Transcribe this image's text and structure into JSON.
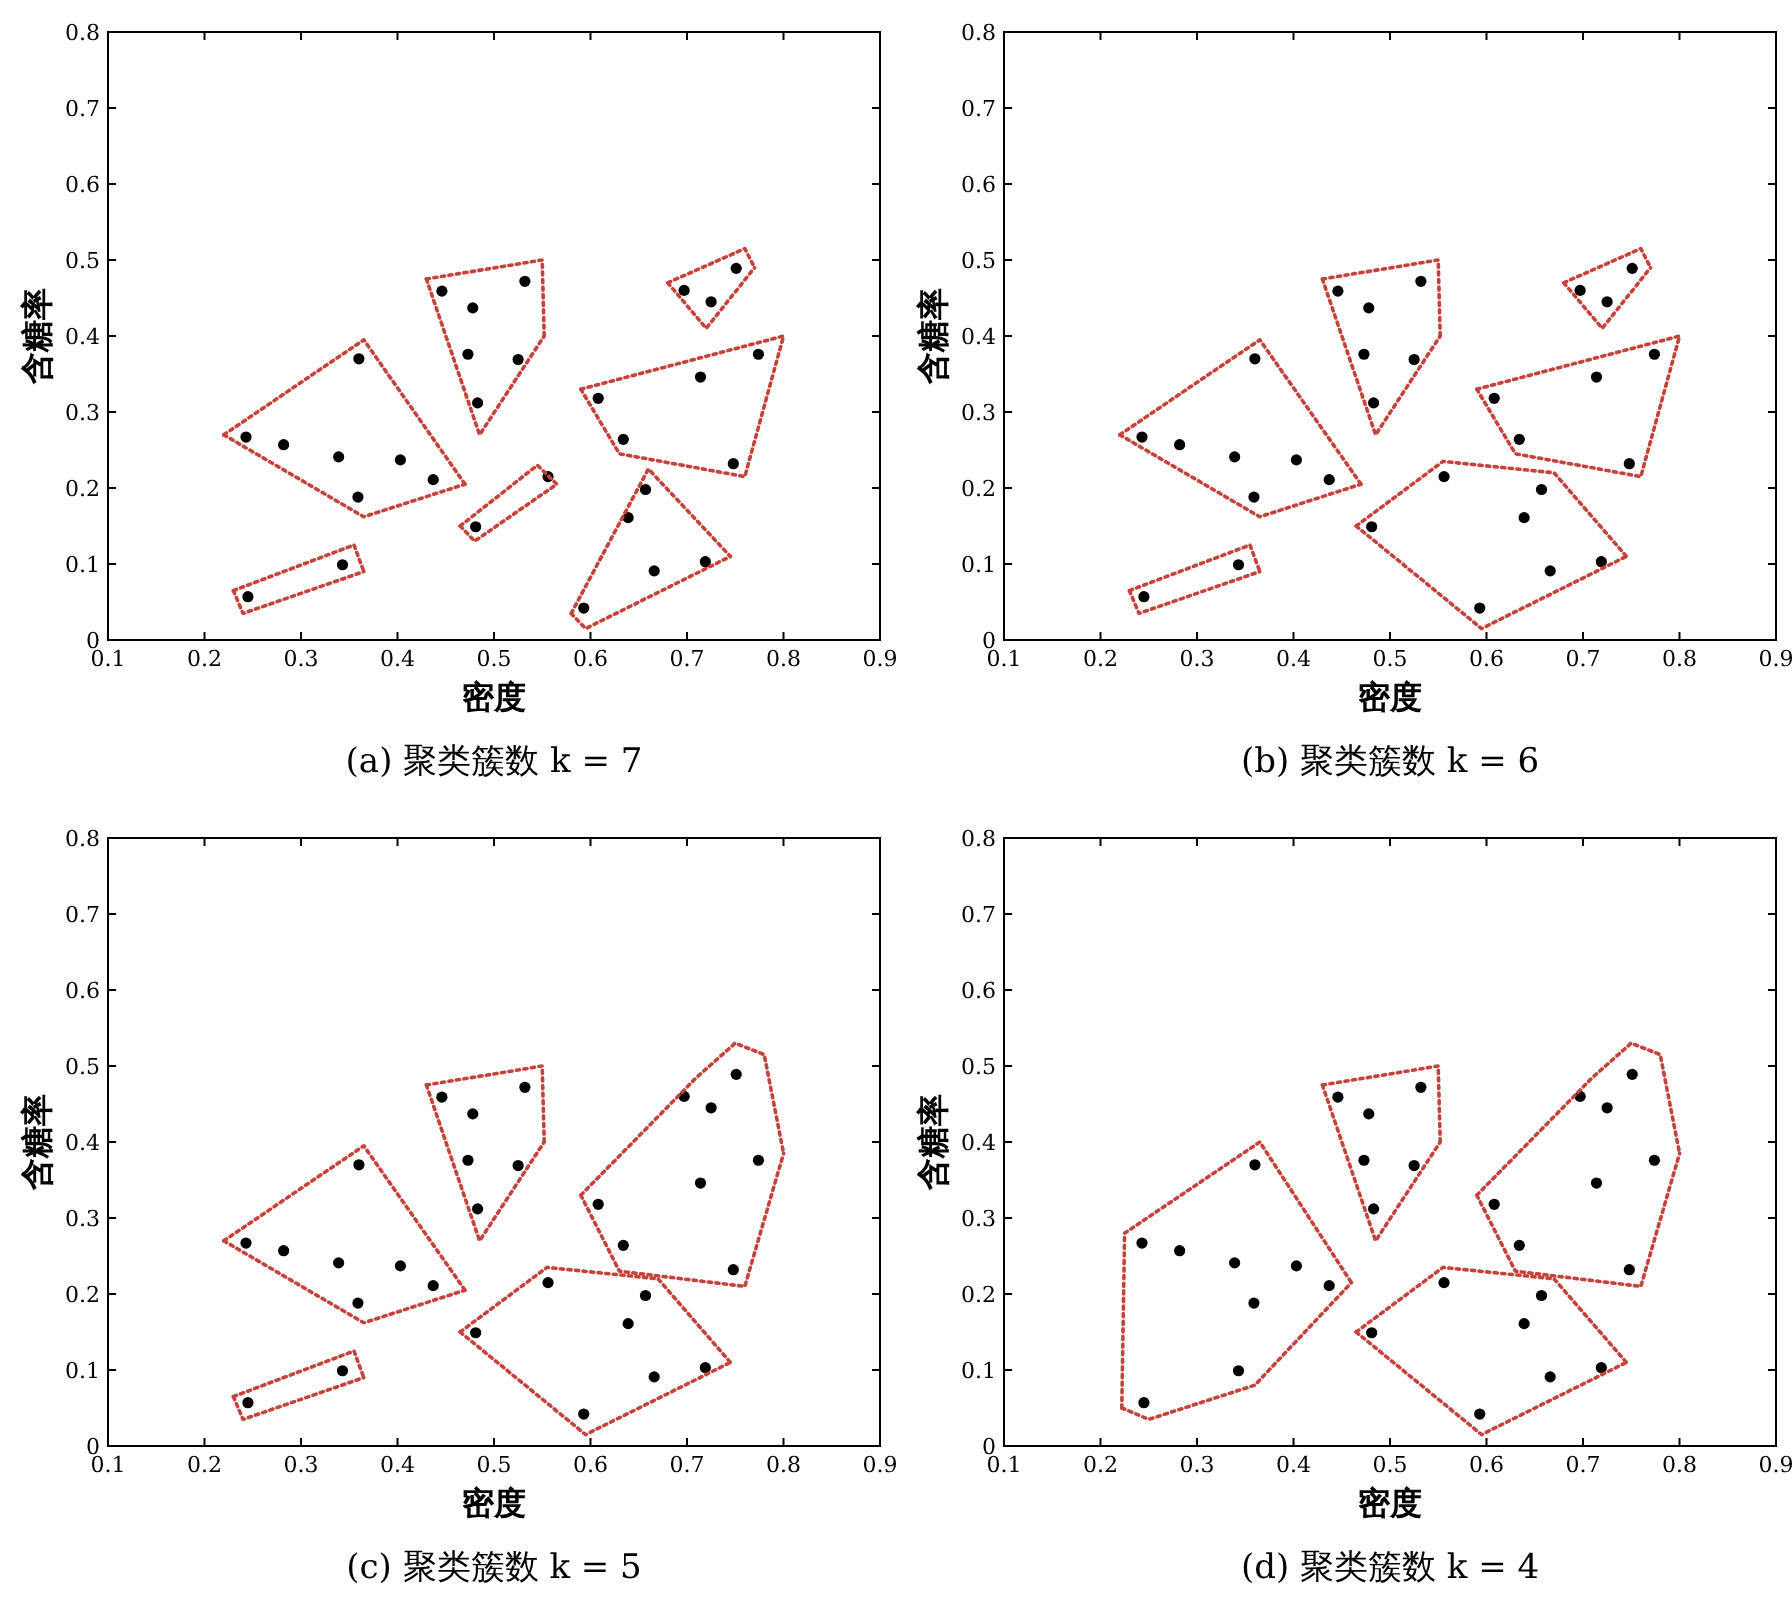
{
  "chart_data": [
    {
      "type": "scatter",
      "title": "(a) 聚类簇数 k = 7",
      "xlabel": "密度",
      "ylabel": "含糖率",
      "xlim": [
        0.1,
        0.9
      ],
      "ylim": [
        0,
        0.8
      ],
      "xticks": [
        0.1,
        0.2,
        0.3,
        0.4,
        0.5,
        0.6,
        0.7,
        0.8,
        0.9
      ],
      "yticks": [
        0,
        0.1,
        0.2,
        0.3,
        0.4,
        0.5,
        0.6,
        0.7,
        0.8
      ],
      "marker": "circle",
      "series": [
        {
          "color": "#000000",
          "x": [
            0.243,
            0.282,
            0.339,
            0.403,
            0.437,
            0.359,
            0.36
          ],
          "values": [
            0.267,
            0.257,
            0.241,
            0.237,
            0.211,
            0.188,
            0.37
          ]
        },
        {
          "color": "#000000",
          "x": [
            0.245,
            0.343
          ],
          "values": [
            0.057,
            0.099
          ]
        },
        {
          "color": "#000000",
          "x": [
            0.446,
            0.478,
            0.473,
            0.483,
            0.525,
            0.532
          ],
          "values": [
            0.459,
            0.437,
            0.376,
            0.312,
            0.369,
            0.472
          ]
        },
        {
          "color": "#000000",
          "x": [
            0.481,
            0.556
          ],
          "values": [
            0.149,
            0.215
          ]
        },
        {
          "color": "#000000",
          "x": [
            0.697,
            0.725,
            0.751
          ],
          "values": [
            0.46,
            0.445,
            0.489
          ]
        },
        {
          "color": "#000000",
          "x": [
            0.608,
            0.634,
            0.714,
            0.774,
            0.748
          ],
          "values": [
            0.318,
            0.264,
            0.346,
            0.376,
            0.232
          ]
        },
        {
          "color": "#000000",
          "x": [
            0.593,
            0.639,
            0.657,
            0.666,
            0.719
          ],
          "values": [
            0.042,
            0.161,
            0.198,
            0.091,
            0.103
          ]
        },
        {
          "type": "line",
          "color": "#c8423c",
          "line_style": "dotted",
          "marker": "none",
          "x": [
            0.22,
            0.365,
            0.47
          ],
          "values": [
            0.27,
            0.395,
            0.205
          ]
        },
        {
          "type": "line",
          "color": "#c8423c",
          "line_style": "dotted",
          "marker": "none",
          "x": [
            0.22,
            0.365,
            0.47
          ],
          "values": [
            0.27,
            0.162,
            0.205
          ]
        },
        {
          "type": "line",
          "color": "#c8423c",
          "line_style": "dotted",
          "marker": "none",
          "x": [
            0.23,
            0.355,
            0.365
          ],
          "values": [
            0.065,
            0.125,
            0.09
          ]
        },
        {
          "type": "line",
          "color": "#c8423c",
          "line_style": "dotted",
          "marker": "none",
          "x": [
            0.23,
            0.24,
            0.365
          ],
          "values": [
            0.065,
            0.035,
            0.09
          ]
        },
        {
          "type": "line",
          "color": "#c8423c",
          "line_style": "dotted",
          "marker": "none",
          "x": [
            0.43,
            0.55,
            0.552
          ],
          "values": [
            0.475,
            0.5,
            0.4
          ]
        },
        {
          "type": "line",
          "color": "#c8423c",
          "line_style": "dotted",
          "marker": "none",
          "x": [
            0.43,
            0.485,
            0.552
          ],
          "values": [
            0.475,
            0.27,
            0.4
          ]
        },
        {
          "type": "line",
          "color": "#c8423c",
          "line_style": "dotted",
          "marker": "none",
          "x": [
            0.465,
            0.545,
            0.565
          ],
          "values": [
            0.15,
            0.23,
            0.205
          ]
        },
        {
          "type": "line",
          "color": "#c8423c",
          "line_style": "dotted",
          "marker": "none",
          "x": [
            0.465,
            0.48,
            0.565
          ],
          "values": [
            0.15,
            0.13,
            0.205
          ]
        },
        {
          "type": "line",
          "color": "#c8423c",
          "line_style": "dotted",
          "marker": "none",
          "x": [
            0.68,
            0.76,
            0.77
          ],
          "values": [
            0.47,
            0.515,
            0.49
          ]
        },
        {
          "type": "line",
          "color": "#c8423c",
          "line_style": "dotted",
          "marker": "none",
          "x": [
            0.68,
            0.72,
            0.77
          ],
          "values": [
            0.47,
            0.41,
            0.49
          ]
        },
        {
          "type": "line",
          "color": "#c8423c",
          "line_style": "dotted",
          "marker": "none",
          "x": [
            0.59,
            0.8
          ],
          "values": [
            0.33,
            0.4
          ]
        },
        {
          "type": "line",
          "color": "#c8423c",
          "line_style": "dotted",
          "marker": "none",
          "x": [
            0.59,
            0.63,
            0.76,
            0.8
          ],
          "values": [
            0.33,
            0.245,
            0.215,
            0.4
          ]
        },
        {
          "type": "line",
          "color": "#c8423c",
          "line_style": "dotted",
          "marker": "none",
          "x": [
            0.58,
            0.66,
            0.745
          ],
          "values": [
            0.035,
            0.225,
            0.11
          ]
        },
        {
          "type": "line",
          "color": "#c8423c",
          "line_style": "dotted",
          "marker": "none",
          "x": [
            0.58,
            0.595,
            0.745
          ],
          "values": [
            0.035,
            0.015,
            0.11
          ]
        }
      ]
    },
    {
      "type": "scatter",
      "title": "(b) 聚类簇数 k = 6",
      "xlabel": "密度",
      "ylabel": "含糖率",
      "xlim": [
        0.1,
        0.9
      ],
      "ylim": [
        0,
        0.8
      ],
      "xticks": [
        0.1,
        0.2,
        0.3,
        0.4,
        0.5,
        0.6,
        0.7,
        0.8,
        0.9
      ],
      "yticks": [
        0,
        0.1,
        0.2,
        0.3,
        0.4,
        0.5,
        0.6,
        0.7,
        0.8
      ],
      "marker": "circle",
      "series": [
        {
          "color": "#000000",
          "x": [
            0.243,
            0.282,
            0.339,
            0.403,
            0.437,
            0.359,
            0.36
          ],
          "values": [
            0.267,
            0.257,
            0.241,
            0.237,
            0.211,
            0.188,
            0.37
          ]
        },
        {
          "color": "#000000",
          "x": [
            0.245,
            0.343
          ],
          "values": [
            0.057,
            0.099
          ]
        },
        {
          "color": "#000000",
          "x": [
            0.446,
            0.478,
            0.473,
            0.483,
            0.525,
            0.532
          ],
          "values": [
            0.459,
            0.437,
            0.376,
            0.312,
            0.369,
            0.472
          ]
        },
        {
          "color": "#000000",
          "x": [
            0.697,
            0.725,
            0.751
          ],
          "values": [
            0.46,
            0.445,
            0.489
          ]
        },
        {
          "color": "#000000",
          "x": [
            0.608,
            0.634,
            0.714,
            0.774,
            0.748
          ],
          "values": [
            0.318,
            0.264,
            0.346,
            0.376,
            0.232
          ]
        },
        {
          "color": "#000000",
          "x": [
            0.481,
            0.556,
            0.593,
            0.639,
            0.657,
            0.666,
            0.719
          ],
          "values": [
            0.149,
            0.215,
            0.042,
            0.161,
            0.198,
            0.091,
            0.103
          ]
        },
        {
          "type": "line",
          "color": "#c8423c",
          "line_style": "dotted",
          "marker": "none",
          "x": [
            0.22,
            0.365,
            0.47
          ],
          "values": [
            0.27,
            0.395,
            0.205
          ]
        },
        {
          "type": "line",
          "color": "#c8423c",
          "line_style": "dotted",
          "marker": "none",
          "x": [
            0.22,
            0.365,
            0.47
          ],
          "values": [
            0.27,
            0.162,
            0.205
          ]
        },
        {
          "type": "line",
          "color": "#c8423c",
          "line_style": "dotted",
          "marker": "none",
          "x": [
            0.23,
            0.355,
            0.365
          ],
          "values": [
            0.065,
            0.125,
            0.09
          ]
        },
        {
          "type": "line",
          "color": "#c8423c",
          "line_style": "dotted",
          "marker": "none",
          "x": [
            0.23,
            0.24,
            0.365
          ],
          "values": [
            0.065,
            0.035,
            0.09
          ]
        },
        {
          "type": "line",
          "color": "#c8423c",
          "line_style": "dotted",
          "marker": "none",
          "x": [
            0.43,
            0.55,
            0.552
          ],
          "values": [
            0.475,
            0.5,
            0.4
          ]
        },
        {
          "type": "line",
          "color": "#c8423c",
          "line_style": "dotted",
          "marker": "none",
          "x": [
            0.43,
            0.485,
            0.552
          ],
          "values": [
            0.475,
            0.27,
            0.4
          ]
        },
        {
          "type": "line",
          "color": "#c8423c",
          "line_style": "dotted",
          "marker": "none",
          "x": [
            0.68,
            0.76,
            0.77
          ],
          "values": [
            0.47,
            0.515,
            0.49
          ]
        },
        {
          "type": "line",
          "color": "#c8423c",
          "line_style": "dotted",
          "marker": "none",
          "x": [
            0.68,
            0.72,
            0.77
          ],
          "values": [
            0.47,
            0.41,
            0.49
          ]
        },
        {
          "type": "line",
          "color": "#c8423c",
          "line_style": "dotted",
          "marker": "none",
          "x": [
            0.59,
            0.8
          ],
          "values": [
            0.33,
            0.4
          ]
        },
        {
          "type": "line",
          "color": "#c8423c",
          "line_style": "dotted",
          "marker": "none",
          "x": [
            0.59,
            0.63,
            0.76,
            0.8
          ],
          "values": [
            0.33,
            0.245,
            0.215,
            0.4
          ]
        },
        {
          "type": "line",
          "color": "#c8423c",
          "line_style": "dotted",
          "marker": "none",
          "x": [
            0.465,
            0.555,
            0.67,
            0.745
          ],
          "values": [
            0.15,
            0.235,
            0.22,
            0.11
          ]
        },
        {
          "type": "line",
          "color": "#c8423c",
          "line_style": "dotted",
          "marker": "none",
          "x": [
            0.465,
            0.595,
            0.745
          ],
          "values": [
            0.15,
            0.015,
            0.11
          ]
        }
      ]
    },
    {
      "type": "scatter",
      "title": "(c) 聚类簇数 k = 5",
      "xlabel": "密度",
      "ylabel": "含糖率",
      "xlim": [
        0.1,
        0.9
      ],
      "ylim": [
        0,
        0.8
      ],
      "xticks": [
        0.1,
        0.2,
        0.3,
        0.4,
        0.5,
        0.6,
        0.7,
        0.8,
        0.9
      ],
      "yticks": [
        0,
        0.1,
        0.2,
        0.3,
        0.4,
        0.5,
        0.6,
        0.7,
        0.8
      ],
      "marker": "circle",
      "series": [
        {
          "color": "#000000",
          "x": [
            0.243,
            0.282,
            0.339,
            0.403,
            0.437,
            0.359,
            0.36
          ],
          "values": [
            0.267,
            0.257,
            0.241,
            0.237,
            0.211,
            0.188,
            0.37
          ]
        },
        {
          "color": "#000000",
          "x": [
            0.245,
            0.343
          ],
          "values": [
            0.057,
            0.099
          ]
        },
        {
          "color": "#000000",
          "x": [
            0.446,
            0.478,
            0.473,
            0.483,
            0.525,
            0.532
          ],
          "values": [
            0.459,
            0.437,
            0.376,
            0.312,
            0.369,
            0.472
          ]
        },
        {
          "color": "#000000",
          "x": [
            0.697,
            0.725,
            0.751,
            0.608,
            0.634,
            0.714,
            0.774,
            0.748
          ],
          "values": [
            0.46,
            0.445,
            0.489,
            0.318,
            0.264,
            0.346,
            0.376,
            0.232
          ]
        },
        {
          "color": "#000000",
          "x": [
            0.481,
            0.556,
            0.593,
            0.639,
            0.657,
            0.666,
            0.719
          ],
          "values": [
            0.149,
            0.215,
            0.042,
            0.161,
            0.198,
            0.091,
            0.103
          ]
        },
        {
          "type": "line",
          "color": "#c8423c",
          "line_style": "dotted",
          "marker": "none",
          "x": [
            0.22,
            0.365,
            0.47
          ],
          "values": [
            0.27,
            0.395,
            0.205
          ]
        },
        {
          "type": "line",
          "color": "#c8423c",
          "line_style": "dotted",
          "marker": "none",
          "x": [
            0.22,
            0.365,
            0.47
          ],
          "values": [
            0.27,
            0.162,
            0.205
          ]
        },
        {
          "type": "line",
          "color": "#c8423c",
          "line_style": "dotted",
          "marker": "none",
          "x": [
            0.23,
            0.355,
            0.365
          ],
          "values": [
            0.065,
            0.125,
            0.09
          ]
        },
        {
          "type": "line",
          "color": "#c8423c",
          "line_style": "dotted",
          "marker": "none",
          "x": [
            0.23,
            0.24,
            0.365
          ],
          "values": [
            0.065,
            0.035,
            0.09
          ]
        },
        {
          "type": "line",
          "color": "#c8423c",
          "line_style": "dotted",
          "marker": "none",
          "x": [
            0.43,
            0.55,
            0.552
          ],
          "values": [
            0.475,
            0.5,
            0.4
          ]
        },
        {
          "type": "line",
          "color": "#c8423c",
          "line_style": "dotted",
          "marker": "none",
          "x": [
            0.43,
            0.485,
            0.552
          ],
          "values": [
            0.475,
            0.27,
            0.4
          ]
        },
        {
          "type": "line",
          "color": "#c8423c",
          "line_style": "dotted",
          "marker": "none",
          "x": [
            0.59,
            0.71,
            0.75,
            0.78,
            0.8
          ],
          "values": [
            0.33,
            0.485,
            0.53,
            0.515,
            0.385
          ]
        },
        {
          "type": "line",
          "color": "#c8423c",
          "line_style": "dotted",
          "marker": "none",
          "x": [
            0.59,
            0.63,
            0.76,
            0.8
          ],
          "values": [
            0.33,
            0.23,
            0.21,
            0.385
          ]
        },
        {
          "type": "line",
          "color": "#c8423c",
          "line_style": "dotted",
          "marker": "none",
          "x": [
            0.465,
            0.555,
            0.67,
            0.745
          ],
          "values": [
            0.15,
            0.235,
            0.22,
            0.11
          ]
        },
        {
          "type": "line",
          "color": "#c8423c",
          "line_style": "dotted",
          "marker": "none",
          "x": [
            0.465,
            0.595,
            0.745
          ],
          "values": [
            0.15,
            0.015,
            0.11
          ]
        }
      ]
    },
    {
      "type": "scatter",
      "title": "(d) 聚类簇数 k = 4",
      "xlabel": "密度",
      "ylabel": "含糖率",
      "xlim": [
        0.1,
        0.9
      ],
      "ylim": [
        0,
        0.8
      ],
      "xticks": [
        0.1,
        0.2,
        0.3,
        0.4,
        0.5,
        0.6,
        0.7,
        0.8,
        0.9
      ],
      "yticks": [
        0,
        0.1,
        0.2,
        0.3,
        0.4,
        0.5,
        0.6,
        0.7,
        0.8
      ],
      "marker": "circle",
      "series": [
        {
          "color": "#000000",
          "x": [
            0.243,
            0.282,
            0.339,
            0.403,
            0.437,
            0.359,
            0.36,
            0.245,
            0.343
          ],
          "values": [
            0.267,
            0.257,
            0.241,
            0.237,
            0.211,
            0.188,
            0.37,
            0.057,
            0.099
          ]
        },
        {
          "color": "#000000",
          "x": [
            0.446,
            0.478,
            0.473,
            0.483,
            0.525,
            0.532
          ],
          "values": [
            0.459,
            0.437,
            0.376,
            0.312,
            0.369,
            0.472
          ]
        },
        {
          "color": "#000000",
          "x": [
            0.697,
            0.725,
            0.751,
            0.608,
            0.634,
            0.714,
            0.774,
            0.748
          ],
          "values": [
            0.46,
            0.445,
            0.489,
            0.318,
            0.264,
            0.346,
            0.376,
            0.232
          ]
        },
        {
          "color": "#000000",
          "x": [
            0.481,
            0.556,
            0.593,
            0.639,
            0.657,
            0.666,
            0.719
          ],
          "values": [
            0.149,
            0.215,
            0.042,
            0.161,
            0.198,
            0.091,
            0.103
          ]
        },
        {
          "type": "line",
          "color": "#c8423c",
          "line_style": "dotted",
          "marker": "none",
          "x": [
            0.222,
            0.225,
            0.365,
            0.46
          ],
          "values": [
            0.05,
            0.28,
            0.4,
            0.215
          ]
        },
        {
          "type": "line",
          "color": "#c8423c",
          "line_style": "dotted",
          "marker": "none",
          "x": [
            0.222,
            0.25,
            0.36,
            0.46
          ],
          "values": [
            0.05,
            0.035,
            0.08,
            0.215
          ]
        },
        {
          "type": "line",
          "color": "#c8423c",
          "line_style": "dotted",
          "marker": "none",
          "x": [
            0.43,
            0.55,
            0.552
          ],
          "values": [
            0.475,
            0.5,
            0.4
          ]
        },
        {
          "type": "line",
          "color": "#c8423c",
          "line_style": "dotted",
          "marker": "none",
          "x": [
            0.43,
            0.485,
            0.552
          ],
          "values": [
            0.475,
            0.27,
            0.4
          ]
        },
        {
          "type": "line",
          "color": "#c8423c",
          "line_style": "dotted",
          "marker": "none",
          "x": [
            0.59,
            0.71,
            0.75,
            0.78,
            0.8
          ],
          "values": [
            0.33,
            0.485,
            0.53,
            0.515,
            0.385
          ]
        },
        {
          "type": "line",
          "color": "#c8423c",
          "line_style": "dotted",
          "marker": "none",
          "x": [
            0.59,
            0.63,
            0.76,
            0.8
          ],
          "values": [
            0.33,
            0.23,
            0.21,
            0.385
          ]
        },
        {
          "type": "line",
          "color": "#c8423c",
          "line_style": "dotted",
          "marker": "none",
          "x": [
            0.465,
            0.555,
            0.67,
            0.745
          ],
          "values": [
            0.15,
            0.235,
            0.22,
            0.11
          ]
        },
        {
          "type": "line",
          "color": "#c8423c",
          "line_style": "dotted",
          "marker": "none",
          "x": [
            0.465,
            0.595,
            0.745
          ],
          "values": [
            0.15,
            0.015,
            0.11
          ]
        }
      ]
    }
  ]
}
